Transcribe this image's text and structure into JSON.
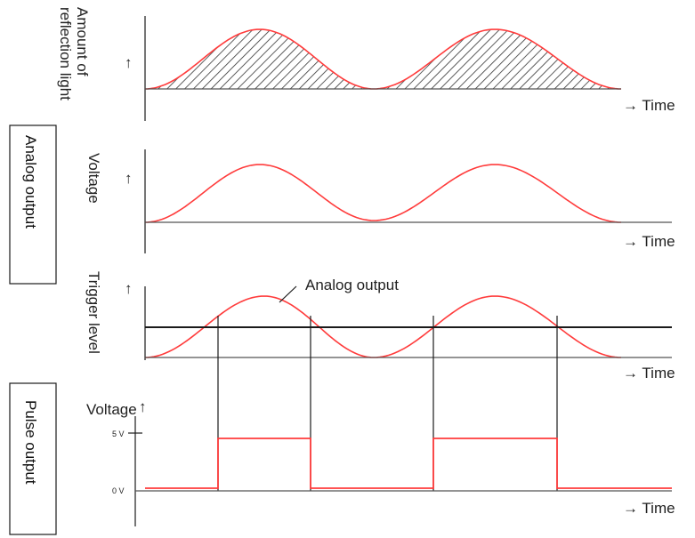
{
  "colors": {
    "signal": "#ff3b3b",
    "axis": "#1a1a1a",
    "level": "#555555",
    "hatch": "#333333"
  },
  "labels": {
    "reflection": "Amount of reflection light",
    "reflection_line1": "Amount of",
    "reflection_line2": "reflection light",
    "voltage": "Voltage",
    "trigger": "Trigger level",
    "analog_output_annotation": "Analog output",
    "voltage_pulse": "Voltage",
    "tick_5v": "5 V",
    "tick_0v": "0 V",
    "time": "→ Time",
    "up_arrow": "↑"
  },
  "boxes": {
    "analog": "Analog output",
    "pulse": "Pulse output"
  }
}
